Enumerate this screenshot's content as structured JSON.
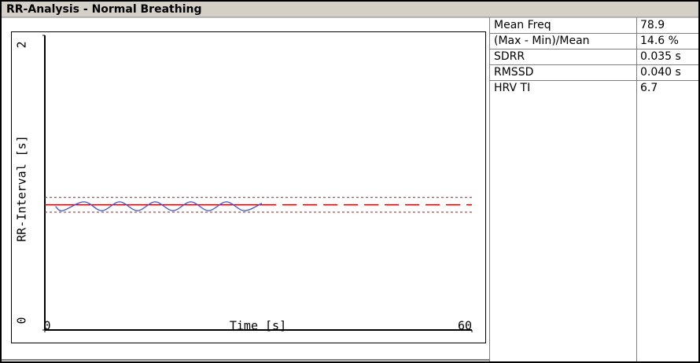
{
  "title": "RR-Analysis - Normal Breathing",
  "chart_data": {
    "type": "line",
    "x_label": "Time [s]",
    "y_label": "RR-Interval [s]",
    "xlim": [
      0,
      60
    ],
    "xticks": [
      0,
      60
    ],
    "ylim": [
      0,
      2
    ],
    "yticks": [
      0,
      2
    ],
    "x": [
      1.5,
      2.5,
      5.5,
      8,
      10.5,
      13,
      15.5,
      18,
      20.5,
      23,
      25.5,
      28,
      30.5
    ],
    "series": [
      {
        "color": "#3355ee",
        "values": [
          0.84,
          0.81,
          0.87,
          0.81,
          0.87,
          0.81,
          0.87,
          0.81,
          0.87,
          0.81,
          0.87,
          0.81,
          0.86
        ]
      }
    ],
    "mean": 0.85,
    "upper": 0.9,
    "lower": 0.8,
    "band_color": "#e00000"
  },
  "table": {
    "rows": [
      [
        "Mean Freq",
        "78.9"
      ],
      [
        "(Max - Min)/Mean",
        "14.6 %"
      ],
      [
        "SDRR",
        "0.035 s"
      ],
      [
        "RMSSD",
        "0.040 s"
      ],
      [
        "HRV TI",
        "6.7"
      ]
    ],
    "highlight_row": 1,
    "highlight_color": "#00a000"
  }
}
